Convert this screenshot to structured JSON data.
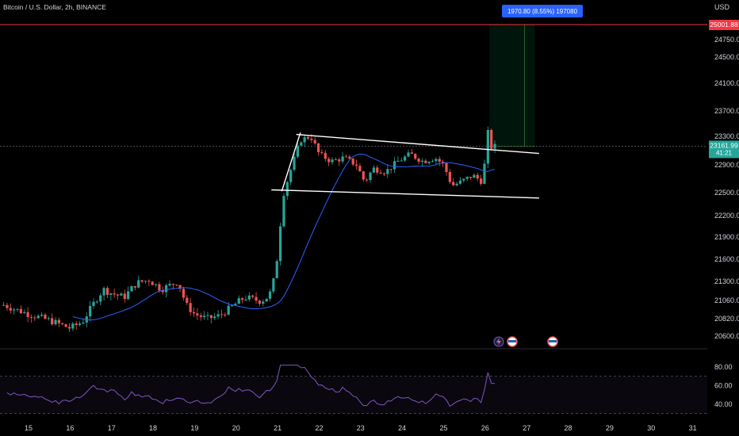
{
  "header": {
    "title": "Bitcoin / U.S. Dollar, 2h, BINANCE",
    "currency": "USD"
  },
  "chart_data": {
    "type": "candlestick",
    "symbol": "Bitcoin / U.S. Dollar",
    "interval": "2h",
    "exchange": "BINANCE",
    "price_axis": {
      "unit": "USD",
      "ticks": [
        24750,
        24500,
        24100,
        23700,
        23300,
        22900,
        22500,
        22200,
        21900,
        21600,
        21300,
        21060,
        20820,
        20600
      ],
      "tick_labels": [
        "24750.00",
        "24500.00",
        "24100.00",
        "23700.00",
        "23300.00",
        "22900.00",
        "22500.00",
        "22200.00",
        "21900.00",
        "21600.00",
        "21300.00",
        "21060.00",
        "20820.00",
        "20600.00"
      ]
    },
    "date_axis": {
      "labels": [
        "15",
        "16",
        "17",
        "18",
        "19",
        "20",
        "21",
        "22",
        "23",
        "24",
        "25",
        "26",
        "27",
        "28",
        "29",
        "30",
        "31"
      ]
    },
    "target_label": {
      "value": "25001.88",
      "color": "#f23645"
    },
    "current_price": {
      "value": "23161.99",
      "countdown": "41:21",
      "color": "#26a69a"
    },
    "measure_label": "1970.80 (8.55%) 197080",
    "target_zone": {
      "bottom_price": 23161.99,
      "top_price": 25001.88,
      "start_day": 26.1,
      "end_day": 27.2,
      "divider_day": 26.95,
      "color": "#00e676"
    },
    "trendlines": [
      {
        "from": [
          21.45,
          23330
        ],
        "to": [
          27.3,
          23060
        ]
      },
      {
        "from": [
          20.85,
          22540
        ],
        "to": [
          27.3,
          22430
        ]
      },
      {
        "from": [
          21.1,
          22520
        ],
        "to": [
          21.55,
          23360
        ]
      }
    ],
    "moving_average": {
      "color": "#2962ff"
    },
    "candle_colors": {
      "up": "#26a69a",
      "down": "#ef5350"
    },
    "rsi": {
      "levels": [
        80,
        60,
        40
      ],
      "level_labels": [
        "80.00",
        "60.00",
        "40.00"
      ],
      "band": [
        70,
        30
      ],
      "color": "#7e57c2"
    },
    "grid": false,
    "background": "#000000"
  }
}
